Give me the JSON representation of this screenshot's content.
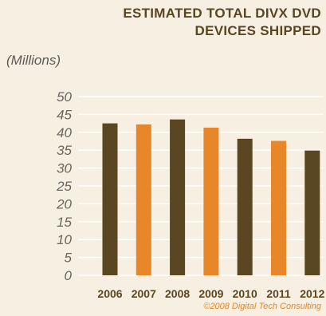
{
  "title_lines": [
    "ESTIMATED TOTAL DIVX DVD",
    "DEVICES SHIPPED"
  ],
  "credit": "©2008 Digital Tech Consulting",
  "colors": {
    "title": "#5a4620",
    "dark_bar": "#5a4620",
    "orange_bar": "#e8862a",
    "grid": "#ffffff",
    "tick_text": "#6a6660",
    "credit": "#e8862a",
    "background": "#f7efe1"
  },
  "chart_data": {
    "type": "bar",
    "title": "ESTIMATED TOTAL DIVX DVD DEVICES SHIPPED",
    "ylabel": "(Millions)",
    "xlabel": "",
    "categories": [
      "2006",
      "2007",
      "2008",
      "2009",
      "2010",
      "2011",
      "2012"
    ],
    "values": [
      42.5,
      42.2,
      43.6,
      41.3,
      38.2,
      37.6,
      34.9
    ],
    "bar_colors": [
      "#5a4620",
      "#e8862a",
      "#5a4620",
      "#e8862a",
      "#5a4620",
      "#e8862a",
      "#5a4620"
    ],
    "ylim": [
      0,
      50
    ],
    "yticks": [
      0,
      5,
      10,
      15,
      20,
      25,
      30,
      35,
      40,
      45,
      50
    ],
    "grid": true,
    "legend": "none"
  }
}
